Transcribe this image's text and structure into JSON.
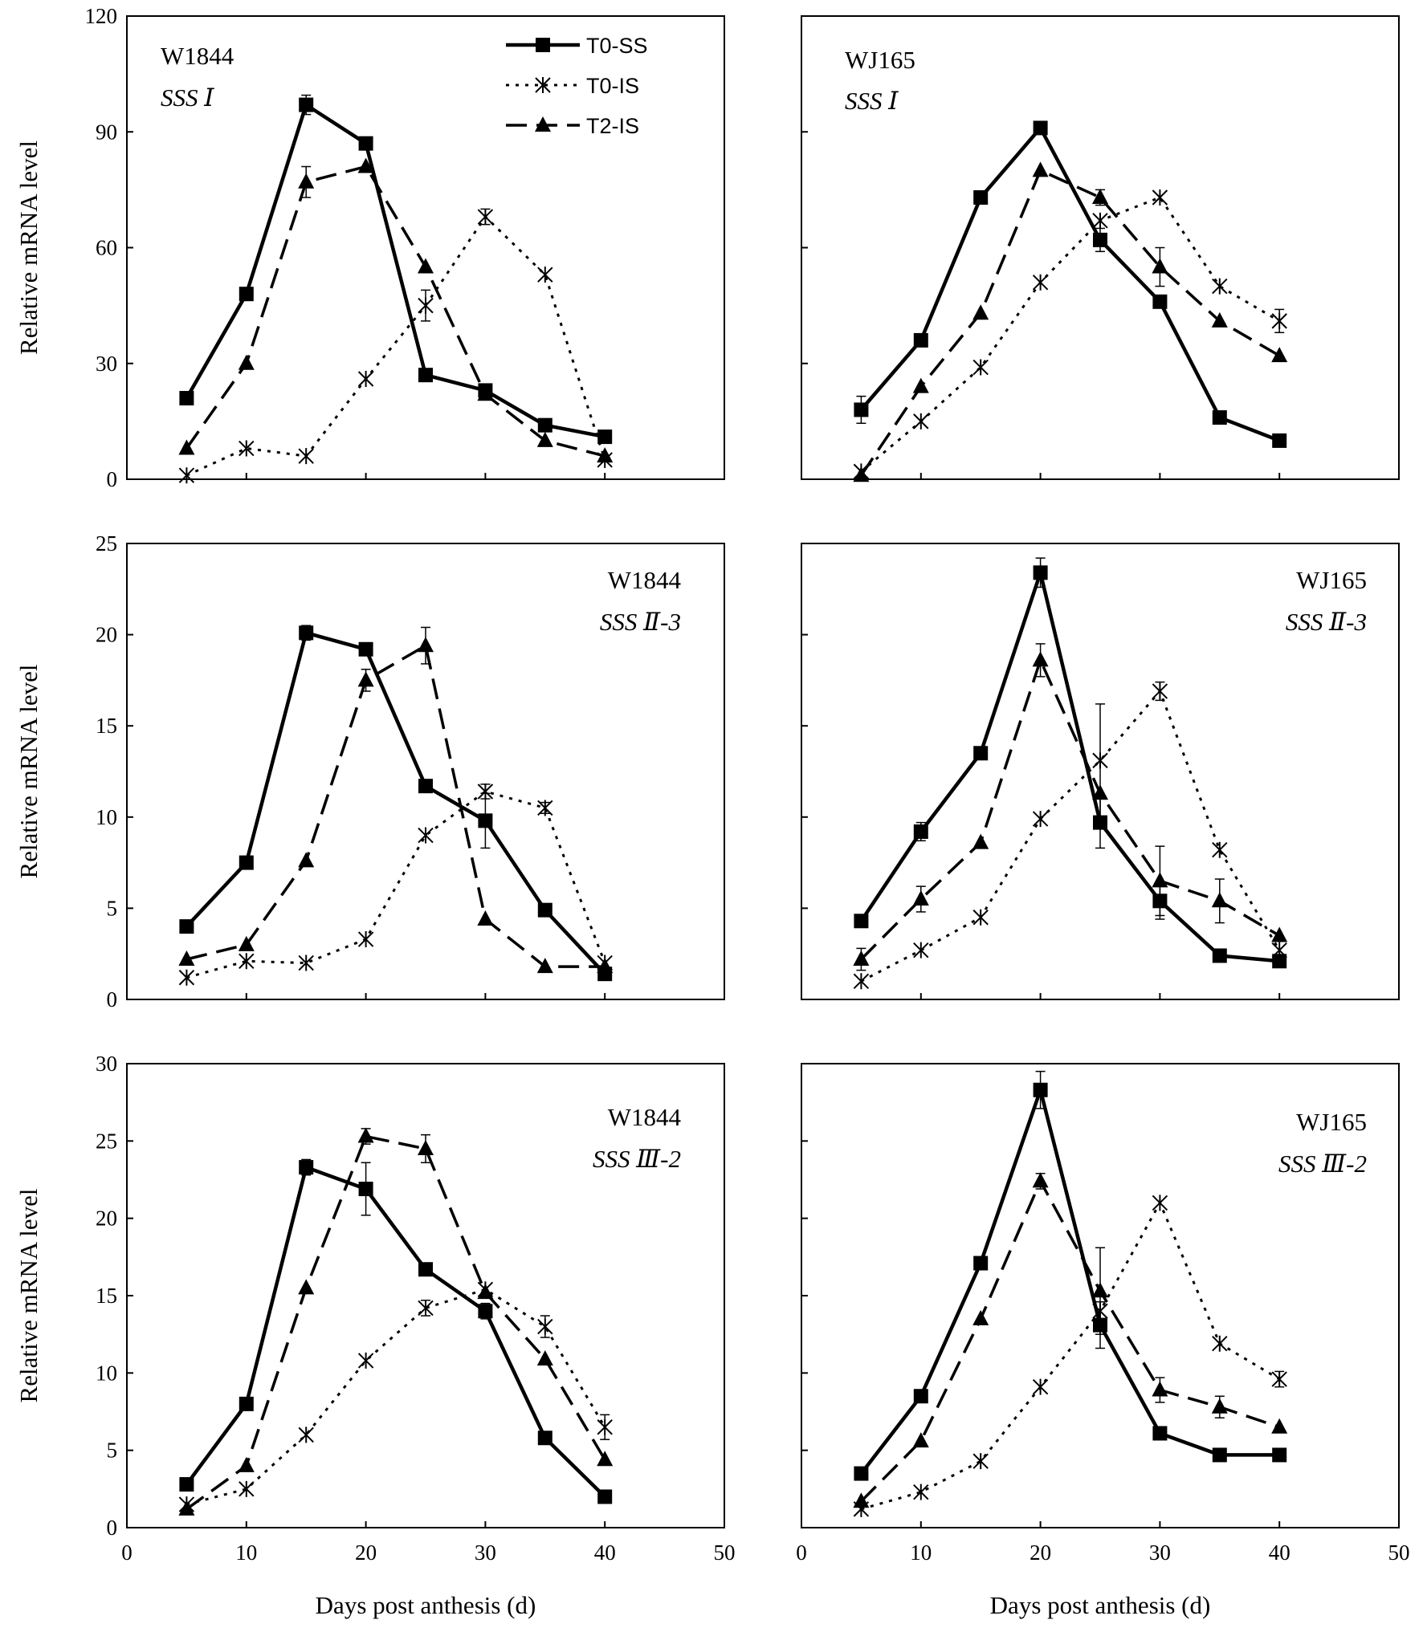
{
  "figure": {
    "series_styles": {
      "T0-SS": {
        "color": "#000000"
      },
      "T0-IS": {
        "color": "#000000"
      },
      "T2-IS": {
        "color": "#000000"
      }
    }
  },
  "chart_data": [
    {
      "type": "line",
      "title": "",
      "cultivar": "W1844",
      "gene": "SSS Ⅰ",
      "xlabel": "",
      "ylabel": "Relative mRNA level",
      "xlim": [
        0,
        50
      ],
      "ylim": [
        0,
        120
      ],
      "xticks": [
        "0",
        "10",
        "20",
        "30",
        "40",
        "50"
      ],
      "yticks": [
        "0",
        "30",
        "60",
        "90",
        "120"
      ],
      "show_x_tick_labels": false,
      "legend": [
        "T0-SS",
        "T0-IS",
        "T2-IS"
      ],
      "x": [
        5,
        10,
        15,
        20,
        25,
        30,
        35,
        40
      ],
      "series": [
        {
          "name": "T0-SS",
          "values": [
            21,
            48,
            97,
            87,
            27,
            23,
            14,
            11
          ],
          "errors": [
            0,
            0,
            2.5,
            0,
            0,
            0,
            0,
            0
          ]
        },
        {
          "name": "T0-IS",
          "values": [
            1,
            8,
            6,
            26,
            45,
            68,
            53,
            5
          ],
          "errors": [
            0,
            0,
            0,
            0,
            4,
            2,
            0,
            0
          ]
        },
        {
          "name": "T2-IS",
          "values": [
            8,
            30,
            77,
            81,
            55,
            22,
            10,
            6
          ],
          "errors": [
            0,
            0,
            4,
            0,
            0,
            0,
            0,
            0
          ]
        }
      ]
    },
    {
      "type": "line",
      "title": "",
      "cultivar": "WJ165",
      "gene": "SSS Ⅰ",
      "xlabel": "",
      "ylabel": "",
      "xlim": [
        0,
        50
      ],
      "ylim": [
        0,
        120
      ],
      "xticks": [
        "0",
        "10",
        "20",
        "30",
        "40",
        "50"
      ],
      "yticks": [
        "0",
        "30",
        "60",
        "90",
        "120"
      ],
      "show_x_tick_labels": false,
      "show_y_tick_labels": false,
      "x": [
        5,
        10,
        15,
        20,
        25,
        30,
        35,
        40
      ],
      "series": [
        {
          "name": "T0-SS",
          "values": [
            18,
            36,
            73,
            91,
            62,
            46,
            16,
            10
          ],
          "errors": [
            3.5,
            0,
            0,
            0,
            3,
            0,
            0,
            0
          ]
        },
        {
          "name": "T0-IS",
          "values": [
            2,
            15,
            29,
            51,
            67,
            73,
            50,
            41
          ],
          "errors": [
            0,
            0,
            0,
            0,
            0,
            0,
            0,
            3
          ]
        },
        {
          "name": "T2-IS",
          "values": [
            1,
            24,
            43,
            80,
            73,
            55,
            41,
            32
          ],
          "errors": [
            0,
            0,
            0,
            0,
            2,
            5,
            0,
            0
          ]
        }
      ]
    },
    {
      "type": "line",
      "title": "",
      "cultivar": "W1844",
      "gene": "SSS Ⅱ-3",
      "xlabel": "",
      "ylabel": "Relative mRNA level",
      "xlim": [
        0,
        50
      ],
      "ylim": [
        0,
        25
      ],
      "xticks": [
        "0",
        "10",
        "20",
        "30",
        "40",
        "50"
      ],
      "yticks": [
        "0",
        "5",
        "10",
        "15",
        "20",
        "25"
      ],
      "show_x_tick_labels": false,
      "x": [
        5,
        10,
        15,
        20,
        25,
        30,
        35,
        40
      ],
      "series": [
        {
          "name": "T0-SS",
          "values": [
            4.0,
            7.5,
            20.1,
            19.2,
            11.7,
            9.8,
            4.9,
            1.4
          ],
          "errors": [
            0,
            0,
            0.4,
            0,
            0,
            1.5,
            0,
            0
          ]
        },
        {
          "name": "T0-IS",
          "values": [
            1.2,
            2.1,
            2.0,
            3.3,
            9.0,
            11.4,
            10.5,
            2.0
          ],
          "errors": [
            0,
            0,
            0,
            0,
            0,
            0.4,
            0.3,
            0
          ]
        },
        {
          "name": "T2-IS",
          "values": [
            2.2,
            3.0,
            7.6,
            17.5,
            19.4,
            4.4,
            1.8,
            1.8
          ],
          "errors": [
            0,
            0,
            0,
            0.6,
            1.0,
            0,
            0,
            0
          ]
        }
      ]
    },
    {
      "type": "line",
      "title": "",
      "cultivar": "WJ165",
      "gene": "SSS Ⅱ-3",
      "xlabel": "",
      "ylabel": "",
      "xlim": [
        0,
        50
      ],
      "ylim": [
        0,
        25
      ],
      "xticks": [
        "0",
        "10",
        "20",
        "30",
        "40",
        "50"
      ],
      "yticks": [
        "0",
        "5",
        "10",
        "15",
        "20",
        "25"
      ],
      "show_x_tick_labels": false,
      "show_y_tick_labels": false,
      "x": [
        5,
        10,
        15,
        20,
        25,
        30,
        35,
        40
      ],
      "series": [
        {
          "name": "T0-SS",
          "values": [
            4.3,
            9.2,
            13.5,
            23.4,
            9.7,
            5.4,
            2.4,
            2.1
          ],
          "errors": [
            0,
            0.5,
            0,
            0.8,
            1.4,
            1.0,
            0,
            0
          ]
        },
        {
          "name": "T0-IS",
          "values": [
            1.0,
            2.7,
            4.5,
            9.9,
            13.1,
            16.9,
            8.2,
            2.7
          ],
          "errors": [
            0,
            0,
            0,
            0,
            3.1,
            0.5,
            0,
            0
          ]
        },
        {
          "name": "T2-IS",
          "values": [
            2.2,
            5.5,
            8.6,
            18.6,
            11.3,
            6.5,
            5.4,
            3.5
          ],
          "errors": [
            0.6,
            0.7,
            0,
            0.9,
            0,
            1.9,
            1.2,
            0
          ]
        }
      ]
    },
    {
      "type": "line",
      "title": "",
      "cultivar": "W1844",
      "gene": "SSS Ⅲ-2",
      "xlabel": "Days post anthesis (d)",
      "ylabel": "Relative mRNA level",
      "xlim": [
        0,
        50
      ],
      "ylim": [
        0,
        30
      ],
      "xticks": [
        "0",
        "10",
        "20",
        "30",
        "40",
        "50"
      ],
      "yticks": [
        "0",
        "5",
        "10",
        "15",
        "20",
        "25",
        "30"
      ],
      "show_x_tick_labels": true,
      "x": [
        5,
        10,
        15,
        20,
        25,
        30,
        35,
        40
      ],
      "series": [
        {
          "name": "T0-SS",
          "values": [
            2.8,
            8.0,
            23.3,
            21.9,
            16.7,
            14.0,
            5.8,
            2.0
          ],
          "errors": [
            0,
            0,
            0.5,
            1.7,
            0,
            0.5,
            0,
            0
          ]
        },
        {
          "name": "T0-IS",
          "values": [
            1.5,
            2.5,
            6.0,
            10.8,
            14.2,
            15.4,
            13.0,
            6.5
          ],
          "errors": [
            0,
            0,
            0,
            0,
            0.5,
            0,
            0.7,
            0.8
          ]
        },
        {
          "name": "T2-IS",
          "values": [
            1.2,
            4.0,
            15.5,
            25.3,
            24.5,
            15.2,
            10.9,
            4.4
          ],
          "errors": [
            0,
            0,
            0,
            0.5,
            0.9,
            0,
            0,
            0
          ]
        }
      ]
    },
    {
      "type": "line",
      "title": "",
      "cultivar": "WJ165",
      "gene": "SSS Ⅲ-2",
      "xlabel": "Days post anthesis (d)",
      "ylabel": "",
      "xlim": [
        0,
        50
      ],
      "ylim": [
        0,
        30
      ],
      "xticks": [
        "0",
        "10",
        "20",
        "30",
        "40",
        "50"
      ],
      "yticks": [
        "0",
        "5",
        "10",
        "15",
        "20",
        "25",
        "30"
      ],
      "show_x_tick_labels": true,
      "show_y_tick_labels": false,
      "x": [
        5,
        10,
        15,
        20,
        25,
        30,
        35,
        40
      ],
      "series": [
        {
          "name": "T0-SS",
          "values": [
            3.5,
            8.5,
            17.1,
            28.3,
            13.1,
            6.1,
            4.7,
            4.7
          ],
          "errors": [
            0,
            0,
            0,
            1.2,
            1.5,
            0,
            0,
            0
          ]
        },
        {
          "name": "T0-IS",
          "values": [
            1.2,
            2.3,
            4.3,
            9.1,
            14.0,
            21.0,
            11.9,
            9.6
          ],
          "errors": [
            0,
            0,
            0,
            0,
            0,
            0,
            0,
            0.5
          ]
        },
        {
          "name": "T2-IS",
          "values": [
            1.7,
            5.6,
            13.5,
            22.4,
            15.3,
            8.9,
            7.8,
            6.5
          ],
          "errors": [
            0,
            0,
            0,
            0.5,
            2.8,
            0.8,
            0.7,
            0
          ]
        }
      ]
    }
  ]
}
